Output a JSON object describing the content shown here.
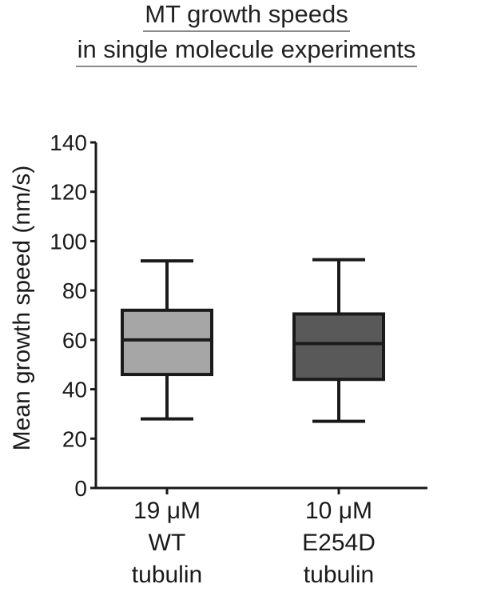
{
  "chart_data": {
    "type": "box",
    "title": [
      "MT growth speeds",
      "in single molecule experiments"
    ],
    "ylabel": "Mean growth speed (nm/s)",
    "xlabel": "",
    "ylim": [
      0,
      140
    ],
    "yticks": [
      0,
      20,
      40,
      60,
      80,
      100,
      120,
      140
    ],
    "grid": false,
    "categories": [
      [
        "19 μM",
        "WT",
        "tubulin"
      ],
      [
        "10 μM",
        "E254D",
        "tubulin"
      ]
    ],
    "boxes": [
      {
        "min": 28,
        "q1": 46,
        "median": 60,
        "q3": 72,
        "max": 92,
        "color": "#a6a6a6"
      },
      {
        "min": 27,
        "q1": 44,
        "median": 58.5,
        "q3": 70.5,
        "max": 92.5,
        "color": "#595959"
      }
    ]
  }
}
